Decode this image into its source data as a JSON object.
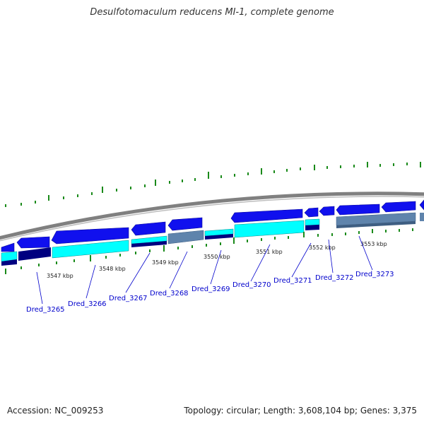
{
  "title": "Desulfotomaculum reducens MI-1, complete genome",
  "footer": {
    "accession": "Accession: NC_009253",
    "topology": "Topology: circular; Length: 3,608,104 bp; Genes: 3,375"
  },
  "colors": {
    "backbone": "#808080",
    "forward_cds": "#1010ee",
    "reverse_cds": "#1010ee",
    "cyan_feature": "#00ffff",
    "navy_feature": "#000080",
    "steel_feature": "#5f84ac",
    "tick": "#1a8a1a",
    "gene_label": "#0000cc"
  },
  "kbp_labels": [
    "3547 kbp",
    "3548 kbp",
    "3549 kbp",
    "3550 kbp",
    "3551 kbp",
    "3552 kbp",
    "3553 kbp"
  ],
  "gene_labels": [
    "Dred_3265",
    "Dred_3266",
    "Dred_3267",
    "Dred_3268",
    "Dred_3269",
    "Dred_3270",
    "Dred_3271",
    "Dred_3272",
    "Dred_3273"
  ]
}
